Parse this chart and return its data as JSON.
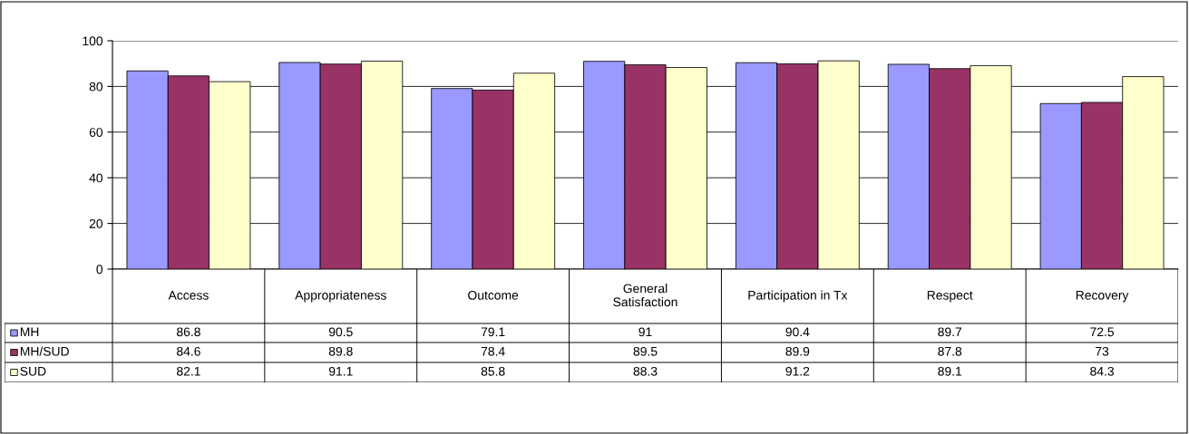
{
  "chart_data": {
    "type": "bar",
    "categories": [
      "Access",
      "Appropriateness",
      "Outcome",
      "General\nSatisfaction",
      "Participation in Tx",
      "Respect",
      "Recovery"
    ],
    "series": [
      {
        "name": "MH",
        "color": "#9999ff",
        "values": [
          86.8,
          90.5,
          79.1,
          91,
          90.4,
          89.7,
          72.5
        ]
      },
      {
        "name": "MH/SUD",
        "color": "#993366",
        "values": [
          84.6,
          89.8,
          78.4,
          89.5,
          89.9,
          87.8,
          73
        ]
      },
      {
        "name": "SUD",
        "color": "#ffffcc",
        "values": [
          82.1,
          91.1,
          85.8,
          88.3,
          91.2,
          89.1,
          84.3
        ]
      }
    ],
    "ylim": [
      0,
      100
    ],
    "yticks": [
      0,
      20,
      40,
      60,
      80,
      100
    ],
    "grid": "y",
    "legend": "bottom",
    "data_labels": true
  }
}
